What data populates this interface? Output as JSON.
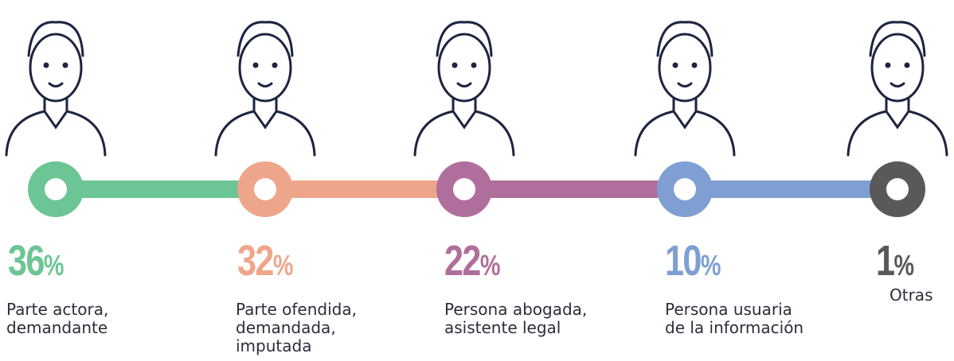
{
  "chart_data": {
    "type": "timeline",
    "categories": [
      "Parte actora,\ndemandante",
      "Parte ofendida,\ndemandada,\nimputada",
      "Persona abogada,\nasistente legal",
      "Persona usuaria\nde la información",
      "Otras"
    ],
    "values": [
      36,
      32,
      22,
      10,
      1
    ],
    "unit": "%",
    "colors": [
      "#6cc594",
      "#eea68a",
      "#b06e9c",
      "#7f9fd3",
      "#595959"
    ]
  }
}
